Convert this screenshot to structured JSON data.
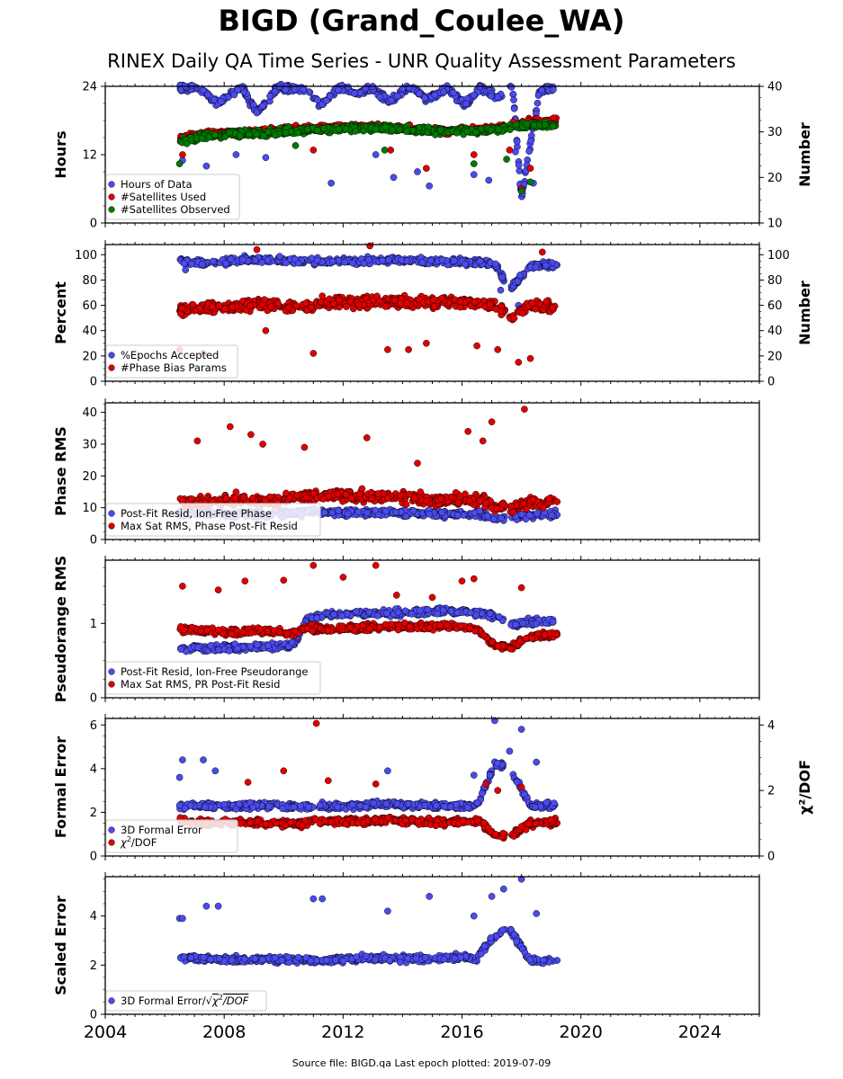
{
  "header": {
    "title": "BIGD (Grand_Coulee_WA)",
    "subtitle": "RINEX Daily QA Time Series - UNR Quality Assessment Parameters"
  },
  "footer": {
    "text": "Source file: BIGD.qa Last epoch plotted: 2019-07-09"
  },
  "colors": {
    "blue": "#4b4bf0",
    "red": "#e00000",
    "green": "#007a00",
    "edge": "#000000"
  },
  "chart_data": [
    {
      "type": "scatter",
      "ylabel": "Hours",
      "ylabel_right": "Number",
      "xlim": [
        2004,
        2026
      ],
      "ylim": [
        0,
        24
      ],
      "yticks": [
        0,
        12,
        24
      ],
      "ylim_right": [
        10,
        40
      ],
      "yticks_right": [
        10,
        20,
        30,
        40
      ],
      "legend_position": "lower-left",
      "series": [
        {
          "name": "Hours of Data",
          "color": "blue",
          "axis": "left",
          "x": [
            2006.5,
            2007.2,
            2007.8,
            2008.6,
            2009.1,
            2009.8,
            2010.9,
            2011.2,
            2011.9,
            2012.4,
            2013.0,
            2013.6,
            2014.2,
            2014.8,
            2015.5,
            2016.1,
            2016.6,
            2017.2,
            2017.7,
            2018.0,
            2018.6,
            2019.2
          ],
          "y": [
            23.8,
            23.5,
            21,
            23.9,
            19.2,
            23.8,
            23.2,
            20.5,
            23.9,
            22.8,
            23.6,
            21.4,
            23.9,
            21.8,
            23.5,
            20.8,
            23.8,
            22.1,
            23.9,
            4.5,
            23.2,
            23.8
          ],
          "outliers_x": [
            2006.6,
            2007.4,
            2008.4,
            2009.4,
            2011.6,
            2013.1,
            2013.7,
            2014.5,
            2014.9,
            2016.4,
            2016.9,
            2017.8,
            2018.4
          ],
          "outliers_y": [
            11,
            10,
            12,
            11.5,
            7,
            12,
            8,
            9,
            6.5,
            8.5,
            7.5,
            12.5,
            7
          ]
        },
        {
          "name": "#Satellites Used",
          "color": "red",
          "axis": "right",
          "x": [
            2006.5,
            2007.5,
            2008.5,
            2009.5,
            2010.5,
            2011.5,
            2012.5,
            2013.5,
            2014.5,
            2015.5,
            2016.5,
            2017.5,
            2018.3,
            2019.2
          ],
          "y": [
            28.5,
            29.5,
            29.8,
            30.2,
            30.6,
            30.8,
            31.2,
            31.0,
            30.6,
            30.2,
            30.4,
            31.0,
            32.2,
            32.4
          ],
          "outliers_x": [
            2006.6,
            2011.0,
            2013.6,
            2014.8,
            2016.4,
            2017.6,
            2018.0,
            2018.3
          ],
          "outliers_y": [
            25,
            26,
            26,
            22,
            25,
            26,
            17.5,
            22
          ]
        },
        {
          "name": "#Satellites Observed",
          "color": "green",
          "axis": "right",
          "x": [
            2006.5,
            2007.5,
            2008.5,
            2009.5,
            2010.5,
            2011.5,
            2012.5,
            2013.5,
            2014.5,
            2015.5,
            2016.5,
            2017.5,
            2018.3,
            2019.2
          ],
          "y": [
            28.0,
            29.2,
            29.6,
            29.8,
            30.4,
            30.6,
            30.9,
            30.8,
            30.4,
            30.0,
            30.2,
            30.8,
            31.6,
            31.4
          ],
          "outliers_x": [
            2006.5,
            2010.4,
            2013.4,
            2016.4,
            2017.5,
            2018.0,
            2018.3
          ],
          "outliers_y": [
            23,
            27,
            26,
            23,
            24,
            17,
            19
          ]
        }
      ]
    },
    {
      "type": "scatter",
      "ylabel": "Percent",
      "ylabel_right": "Number",
      "xlim": [
        2004,
        2026
      ],
      "ylim": [
        0,
        108
      ],
      "yticks": [
        0,
        20,
        40,
        60,
        80,
        100
      ],
      "ylim_right": [
        0,
        108
      ],
      "yticks_right": [
        0,
        20,
        40,
        60,
        80,
        100
      ],
      "legend_position": "lower-left",
      "series": [
        {
          "name": "%Epochs Accepted",
          "color": "blue",
          "axis": "left",
          "x": [
            2006.5,
            2007.5,
            2008.5,
            2009.5,
            2010.5,
            2011.5,
            2012.5,
            2013.5,
            2014.5,
            2015.5,
            2016.5,
            2017.1,
            2017.6,
            2018.3,
            2019.2
          ],
          "y": [
            95,
            93,
            96,
            96,
            95,
            95,
            95,
            96,
            95,
            94,
            94,
            93,
            73,
            91,
            92
          ],
          "outliers_x": [
            2006.7,
            2017.3,
            2017.9
          ],
          "outliers_y": [
            88,
            72,
            60
          ]
        },
        {
          "name": "#Phase Bias Params",
          "color": "red",
          "axis": "right",
          "x": [
            2006.5,
            2007.5,
            2008.5,
            2009.5,
            2010.5,
            2011.5,
            2012.5,
            2013.5,
            2014.5,
            2015.5,
            2016.5,
            2017.1,
            2017.6,
            2018.3,
            2019.2
          ],
          "y": [
            56,
            58,
            60,
            60,
            58,
            63,
            62,
            63,
            62,
            63,
            62,
            60,
            52,
            60,
            58
          ],
          "outliers_x": [
            2006.5,
            2007.3,
            2009.1,
            2009.4,
            2011.0,
            2012.9,
            2013.5,
            2014.2,
            2014.8,
            2016.5,
            2017.2,
            2017.9,
            2018.3,
            2018.7
          ],
          "outliers_y": [
            25,
            22,
            104,
            40,
            22,
            107,
            25,
            25,
            30,
            28,
            25,
            15,
            18,
            102
          ]
        }
      ]
    },
    {
      "type": "scatter",
      "ylabel": "Phase RMS",
      "xlim": [
        2004,
        2026
      ],
      "ylim": [
        0,
        43
      ],
      "yticks": [
        0,
        10,
        20,
        30,
        40
      ],
      "legend_position": "lower-left",
      "series": [
        {
          "name": "Post-Fit Resid, Ion-Free Phase",
          "color": "blue",
          "x": [
            2006.5,
            2007.5,
            2008.5,
            2009.5,
            2010.5,
            2011.5,
            2012.5,
            2013.5,
            2014.5,
            2015.5,
            2016.5,
            2017.1,
            2017.6,
            2018.3,
            2019.2
          ],
          "y": [
            8.5,
            8.2,
            8.0,
            7.8,
            8.6,
            8.4,
            8.3,
            8.5,
            8.2,
            8.1,
            8.0,
            6.5,
            6.8,
            7.8,
            8.2
          ],
          "outliers_x": [],
          "outliers_y": []
        },
        {
          "name": "Max Sat RMS, Phase Post-Fit Resid",
          "color": "red",
          "x": [
            2006.5,
            2007.5,
            2008.5,
            2009.5,
            2010.5,
            2011.5,
            2012.5,
            2013.5,
            2014.5,
            2015.5,
            2016.5,
            2017.1,
            2017.6,
            2018.3,
            2019.2
          ],
          "y": [
            11.5,
            12.0,
            12.5,
            12.0,
            13.5,
            14.0,
            13.5,
            13.5,
            13.0,
            12.5,
            12.5,
            10.5,
            10.0,
            11.5,
            12.0
          ],
          "outliers_x": [
            2007.1,
            2008.2,
            2008.9,
            2010.7,
            2012.8,
            2016.2,
            2016.7,
            2017.0,
            2018.1,
            2009.3,
            2014.5
          ],
          "outliers_y": [
            31,
            35.5,
            33,
            29,
            32,
            34,
            31,
            37,
            41,
            30,
            24
          ]
        }
      ]
    },
    {
      "type": "scatter",
      "ylabel": "Pseudorange RMS",
      "xlim": [
        2004,
        2026
      ],
      "ylim": [
        0,
        1.85
      ],
      "yticks": [
        0,
        1
      ],
      "legend_position": "lower-left",
      "series": [
        {
          "name": "Post-Fit Resid, Ion-Free Pseudorange",
          "color": "blue",
          "x": [
            2006.5,
            2007.5,
            2008.5,
            2009.5,
            2010.3,
            2010.8,
            2011.5,
            2012.5,
            2013.5,
            2014.5,
            2015.5,
            2016.5,
            2017.1,
            2017.6,
            2018.3,
            2019.2
          ],
          "y": [
            0.66,
            0.67,
            0.68,
            0.69,
            0.7,
            1.05,
            1.12,
            1.13,
            1.14,
            1.15,
            1.17,
            1.14,
            1.1,
            1.0,
            1.02,
            1.03
          ],
          "outliers_x": [],
          "outliers_y": []
        },
        {
          "name": "Max Sat RMS, PR Post-Fit Resid",
          "color": "red",
          "x": [
            2006.5,
            2007.5,
            2008.5,
            2009.5,
            2010.3,
            2010.8,
            2011.5,
            2012.5,
            2013.5,
            2014.5,
            2015.5,
            2016.5,
            2017.1,
            2017.6,
            2018.3,
            2019.2
          ],
          "y": [
            0.92,
            0.9,
            0.88,
            0.9,
            0.86,
            0.95,
            0.92,
            0.94,
            0.96,
            0.95,
            0.97,
            0.93,
            0.7,
            0.68,
            0.82,
            0.85
          ],
          "outliers_x": [
            2006.6,
            2007.8,
            2008.7,
            2010.0,
            2011.0,
            2012.0,
            2013.1,
            2013.8,
            2015.0,
            2016.0,
            2016.4,
            2018.0
          ],
          "outliers_y": [
            1.5,
            1.45,
            1.57,
            1.58,
            1.78,
            1.62,
            1.78,
            1.38,
            1.35,
            1.57,
            1.6,
            1.48
          ]
        }
      ]
    },
    {
      "type": "scatter",
      "ylabel": "Formal Error",
      "ylabel_right": "χ²/DOF",
      "xlim": [
        2004,
        2026
      ],
      "ylim": [
        0,
        6.3
      ],
      "yticks": [
        0,
        2,
        4,
        6
      ],
      "ylim_right": [
        0,
        4.2
      ],
      "yticks_right": [
        0,
        2,
        4
      ],
      "legend_position": "lower-left",
      "series": [
        {
          "name": "3D Formal Error",
          "color": "blue",
          "axis": "left",
          "x": [
            2006.5,
            2007.5,
            2008.5,
            2009.5,
            2010.5,
            2011.5,
            2012.5,
            2013.5,
            2014.5,
            2015.5,
            2016.5,
            2017.1,
            2017.6,
            2018.3,
            2019.2
          ],
          "y": [
            2.3,
            2.3,
            2.3,
            2.3,
            2.25,
            2.3,
            2.3,
            2.4,
            2.3,
            2.3,
            2.3,
            4.2,
            4.1,
            2.3,
            2.3
          ],
          "outliers_x": [
            2006.5,
            2006.6,
            2007.3,
            2007.7,
            2013.5,
            2016.4,
            2017.1,
            2017.6,
            2018.0,
            2018.5
          ],
          "outliers_y": [
            3.6,
            4.4,
            4.4,
            3.9,
            3.9,
            3.7,
            6.2,
            4.8,
            5.8,
            4.3
          ]
        },
        {
          "name": "$\\chi^2$/DOF",
          "color": "red",
          "axis": "right",
          "x": [
            2006.5,
            2007.5,
            2008.5,
            2009.5,
            2010.5,
            2011.5,
            2012.5,
            2013.5,
            2014.5,
            2015.5,
            2016.5,
            2017.1,
            2017.6,
            2018.3,
            2019.2
          ],
          "y": [
            1.1,
            1.0,
            1.05,
            1.0,
            1.0,
            1.05,
            1.05,
            1.1,
            1.05,
            1.05,
            1.05,
            0.65,
            0.6,
            1.0,
            1.05
          ],
          "outliers_x": [
            2008.8,
            2010.0,
            2011.1,
            2011.5,
            2013.1,
            2016.8,
            2017.2,
            2018.0
          ],
          "outliers_y": [
            2.25,
            2.6,
            4.05,
            2.3,
            2.2,
            2.2,
            2.0,
            2.1
          ]
        }
      ]
    },
    {
      "type": "scatter",
      "ylabel": "Scaled Error",
      "xlim": [
        2004,
        2026
      ],
      "xticks": [
        2004,
        2008,
        2012,
        2016,
        2020,
        2024
      ],
      "ylim": [
        0,
        5.6
      ],
      "yticks": [
        0,
        2,
        4
      ],
      "legend_position": "lower-left",
      "series": [
        {
          "name": "3D Formal Error/$\\sqrt{\\chi^2/DOF}$",
          "color": "blue",
          "x": [
            2006.5,
            2007.5,
            2008.5,
            2009.5,
            2010.5,
            2011.5,
            2012.5,
            2013.5,
            2014.5,
            2015.5,
            2016.5,
            2017.1,
            2017.6,
            2018.3,
            2019.2
          ],
          "y": [
            2.3,
            2.25,
            2.2,
            2.25,
            2.2,
            2.2,
            2.25,
            2.3,
            2.25,
            2.3,
            2.3,
            3.2,
            3.5,
            2.2,
            2.2
          ],
          "outliers_x": [
            2006.5,
            2006.6,
            2007.4,
            2007.8,
            2011.0,
            2011.3,
            2013.5,
            2014.9,
            2017.0,
            2017.4,
            2018.0,
            2018.5,
            2016.4
          ],
          "outliers_y": [
            3.9,
            3.9,
            4.4,
            4.4,
            4.7,
            4.7,
            4.2,
            4.8,
            4.8,
            5.1,
            5.5,
            4.1,
            4.0
          ]
        }
      ]
    }
  ]
}
